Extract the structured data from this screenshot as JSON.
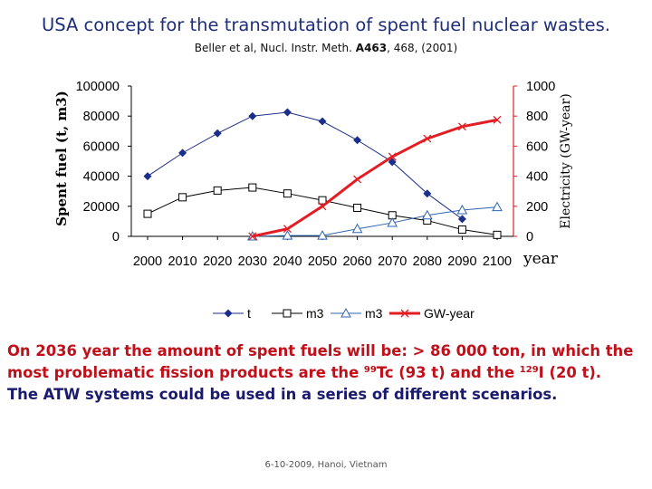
{
  "slide": {
    "title": "USA concept for the transmutation of spent fuel nuclear wastes.",
    "reference": {
      "authors": "Beller et al, Nucl. Instr. Meth.",
      "volume": "A463",
      "pages": ", 468, (2001)"
    },
    "summary": {
      "line1_pre": "On 2036 year the amount of spent fuels will be: > 86 000 ton, in which the most problematic  fission products are the ",
      "tc_mass": "99",
      "tc_rest": "Tc (93 t) and the ",
      "i_mass": "129",
      "i_rest": "I (20 t).",
      "scenario": "The ATW systems could be used in a series of different scenarios."
    },
    "footer": "6-10-2009, Hanoi, Vietnam"
  },
  "chart_data": {
    "type": "line",
    "title": "",
    "xlabel": "year",
    "ylabel": "Spent fuel (t, m3)",
    "y2label": "Electricity (GW-year)",
    "categories": [
      "2000",
      "2010",
      "2020",
      "2030",
      "2040",
      "2050",
      "2060",
      "2070",
      "2080",
      "2090",
      "2100"
    ],
    "ylim": [
      0,
      100000
    ],
    "y_ticks": [
      "0",
      "20000",
      "40000",
      "60000",
      "80000",
      "100000"
    ],
    "y2lim": [
      0,
      1000
    ],
    "y2_ticks": [
      "0",
      "200",
      "400",
      "600",
      "800",
      "1000"
    ],
    "legend_position": "bottom",
    "series": [
      {
        "name": "t",
        "axis": "left",
        "marker": "diamond",
        "color": "#1c2e8c",
        "x": [
          2000,
          2010,
          2020,
          2030,
          2040,
          2050,
          2060,
          2070,
          2080,
          2090
        ],
        "values": [
          40000,
          55500,
          68500,
          80000,
          82500,
          76500,
          64000,
          49500,
          28500,
          11500
        ]
      },
      {
        "name": "m3",
        "axis": "left",
        "marker": "square",
        "color": "#000000",
        "x": [
          2000,
          2010,
          2020,
          2030,
          2040,
          2050,
          2060,
          2070,
          2080,
          2090,
          2100
        ],
        "values": [
          15000,
          26000,
          30500,
          32500,
          28500,
          24000,
          19000,
          14000,
          10500,
          4500,
          1000
        ]
      },
      {
        "name": "m3",
        "axis": "right",
        "marker": "triangle",
        "color": "#2e64b0",
        "x": [
          2030,
          2040,
          2050,
          2060,
          2070,
          2080,
          2090,
          2100
        ],
        "values": [
          0,
          5,
          5,
          50,
          90,
          140,
          175,
          195
        ]
      },
      {
        "name": "GW-year",
        "axis": "right",
        "marker": "x",
        "color": "#e21e24",
        "x": [
          2030,
          2040,
          2050,
          2060,
          2070,
          2080,
          2090,
          2100
        ],
        "values": [
          0,
          50,
          200,
          380,
          530,
          650,
          730,
          775
        ]
      }
    ]
  }
}
